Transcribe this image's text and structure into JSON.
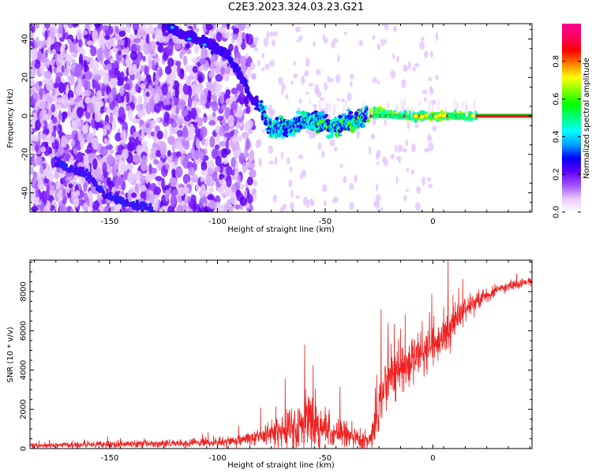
{
  "title": "C2E3.2023.324.03.23.G21",
  "chart_data": [
    {
      "type": "heatmap",
      "xlabel": "Height of straight line (km)",
      "ylabel": "Frequency (Hz)",
      "xlim": [
        -187,
        46
      ],
      "ylim": [
        -50,
        48
      ],
      "xticks": [
        -150,
        -100,
        -50,
        0
      ],
      "yticks": [
        -40,
        -20,
        0,
        20,
        40
      ],
      "colorbar": {
        "label": "Normalized spectral amplitude",
        "ticks": [
          0.0,
          0.2,
          0.4,
          0.6,
          0.8
        ],
        "range": [
          0,
          1
        ],
        "colors": [
          "#ffffff",
          "#e8c8ff",
          "#a050ff",
          "#6000ff",
          "#0000ff",
          "#00a0ff",
          "#00ffff",
          "#00ff80",
          "#00ff00",
          "#80ff00",
          "#ffff00",
          "#ff8000",
          "#ff0000",
          "#ff0060",
          "#ff0090"
        ]
      },
      "ridge": {
        "height_km": [
          -125,
          -115,
          -105,
          -95,
          -88,
          -84,
          -80,
          -75,
          -70,
          -65,
          -60,
          -55,
          -50,
          -45,
          -40,
          -35,
          -30,
          -25,
          -20,
          -10,
          0,
          10,
          20,
          46
        ],
        "frequency_hz": [
          48,
          42,
          38,
          32,
          18,
          8,
          5,
          -8,
          -6,
          -5,
          -3,
          -2,
          -4,
          -6,
          -4,
          -2,
          1,
          3,
          1,
          0,
          0,
          0,
          0,
          0
        ]
      },
      "secondary_ridge": {
        "height_km": [
          -175,
          -168,
          -160,
          -155,
          -150,
          -140,
          -130
        ],
        "frequency_hz": [
          -24,
          -28,
          -30,
          -38,
          -42,
          -46,
          -48
        ]
      }
    },
    {
      "type": "line",
      "xlabel": "Height of straight line (km)",
      "ylabel": "SNR (10 * v/v)",
      "xlim": [
        -187,
        46
      ],
      "ylim": [
        0,
        9600
      ],
      "xticks": [
        -150,
        -100,
        -50,
        0
      ],
      "yticks": [
        0,
        2000,
        4000,
        6000,
        8000
      ],
      "color": "#ee2222",
      "trend": {
        "x": [
          -187,
          -150,
          -120,
          -100,
          -90,
          -80,
          -70,
          -60,
          -55,
          -50,
          -45,
          -40,
          -35,
          -30,
          -27,
          -25,
          -22,
          -20,
          -15,
          -10,
          -5,
          0,
          5,
          10,
          15,
          20,
          25,
          30,
          35,
          40,
          46
        ],
        "y": [
          150,
          200,
          250,
          300,
          400,
          600,
          900,
          1200,
          1200,
          1000,
          800,
          700,
          500,
          300,
          1000,
          2000,
          3200,
          3500,
          3800,
          4500,
          5000,
          5200,
          5800,
          6500,
          7000,
          7500,
          7800,
          8100,
          8300,
          8400,
          8500
        ]
      },
      "noise_spread": {
        "x": [
          -187,
          -100,
          -80,
          -65,
          -55,
          -40,
          -30,
          -25,
          -10,
          0,
          10,
          20,
          46
        ],
        "y": [
          150,
          250,
          500,
          1200,
          1600,
          700,
          500,
          1500,
          1500,
          1400,
          1000,
          500,
          200
        ]
      },
      "spikes": [
        {
          "x": -59.5,
          "y": 5300
        },
        {
          "x": -24,
          "y": 7100
        },
        {
          "x": -16,
          "y": 5600
        },
        {
          "x": -5,
          "y": 6500
        },
        {
          "x": 7,
          "y": 9600
        },
        {
          "x": 12,
          "y": 8200
        }
      ]
    }
  ]
}
